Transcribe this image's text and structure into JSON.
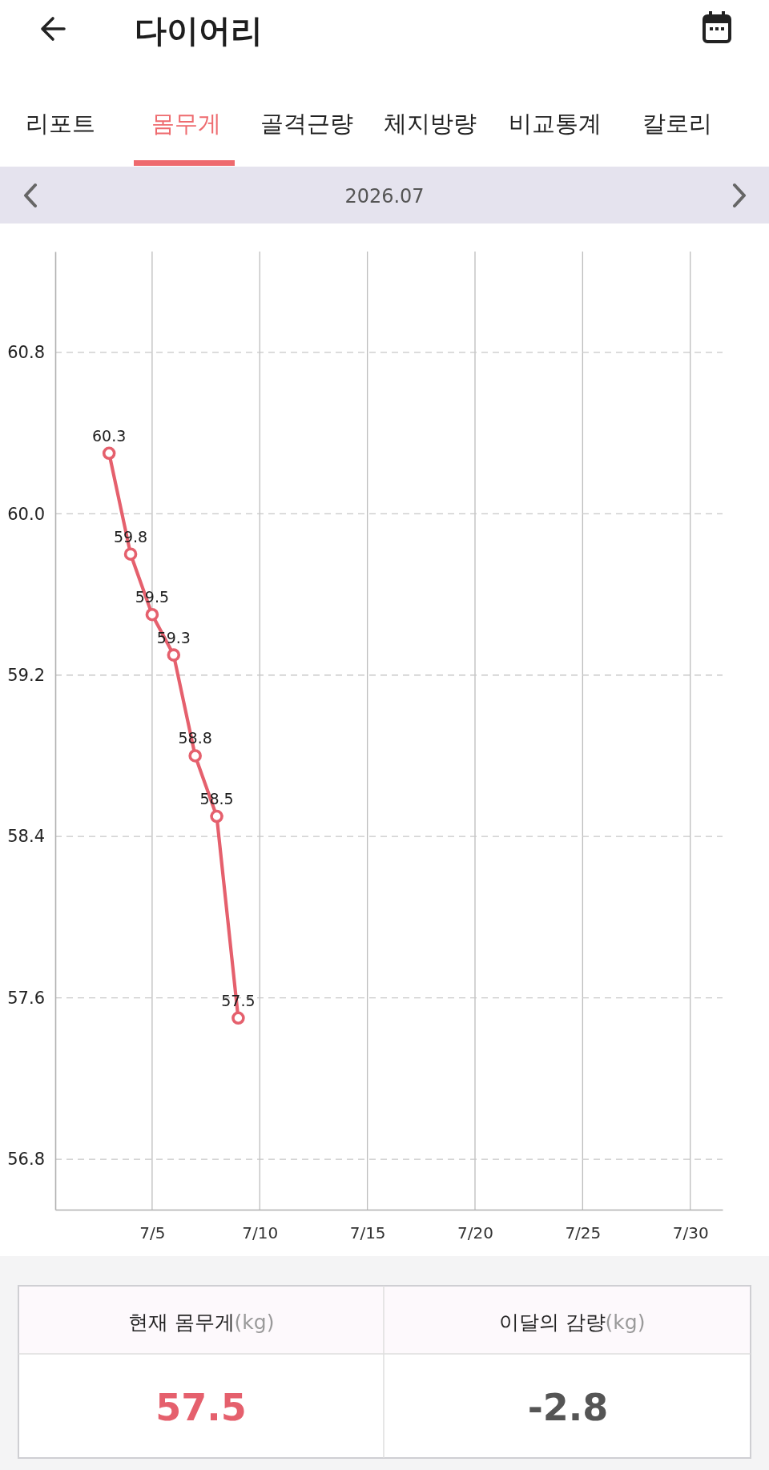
{
  "chart_data": {
    "type": "line",
    "title": "다이어리",
    "subtitle": "2026.07",
    "x": [
      "2026-07-03",
      "2026-07-04",
      "2026-07-05",
      "2026-07-06",
      "2026-07-07",
      "2026-07-08",
      "2026-07-09"
    ],
    "series": [
      {
        "color": "#e5606d",
        "values": [
          60.3,
          59.8,
          59.5,
          59.3,
          58.8,
          58.5,
          57.5
        ]
      }
    ],
    "xlim": [
      "2026-06-30T12:00",
      "2026-07-31T12:00"
    ],
    "xticks": [
      {
        "value": "2026-07-05",
        "label": "7/5"
      },
      {
        "value": "2026-07-10",
        "label": "7/10"
      },
      {
        "value": "2026-07-15",
        "label": "7/15"
      },
      {
        "value": "2026-07-20",
        "label": "7/20"
      },
      {
        "value": "2026-07-25",
        "label": "7/25"
      },
      {
        "value": "2026-07-30",
        "label": "7/30"
      }
    ],
    "ylim": [
      56.55,
      61.3
    ],
    "yticks": [
      56.8,
      57.6,
      58.4,
      59.2,
      {
        "value": 60,
        "label": "60.0"
      },
      60.8
    ],
    "grid": true,
    "marker": "circle",
    "line_style": "solid",
    "data_labels": true,
    "annotations": [
      "리포트",
      "몸무게",
      "골격근량",
      "체지방량",
      "비교통계",
      "칼로리",
      "현재 몸무게(kg)",
      "이달의 감량(kg)",
      "57.5",
      "-2.8"
    ]
  }
}
